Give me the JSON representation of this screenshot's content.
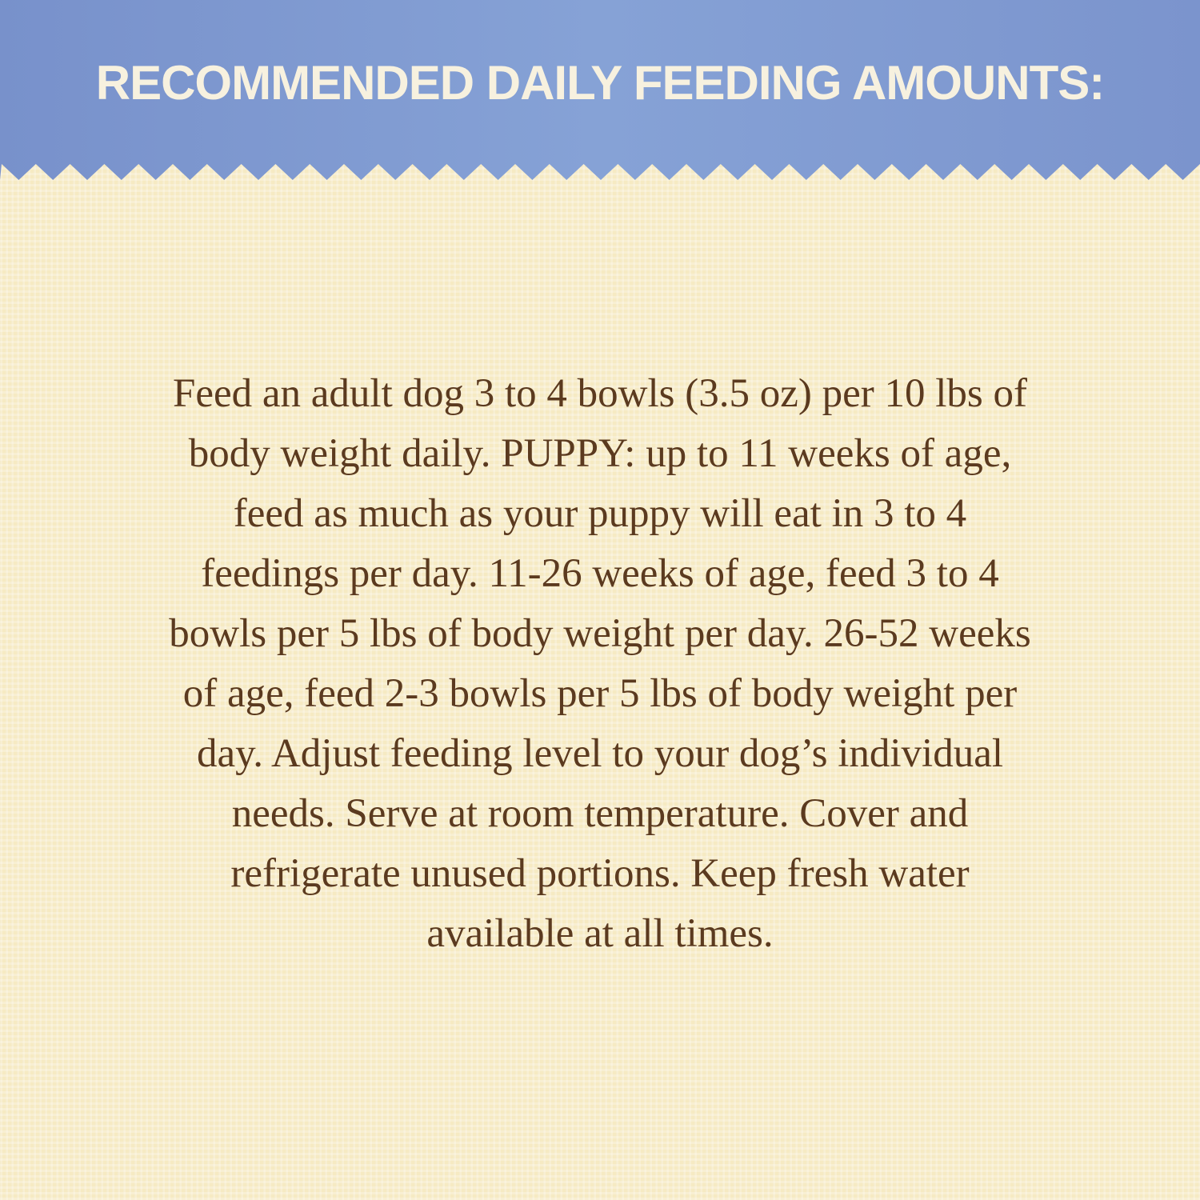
{
  "header": {
    "title": "RECOMMENDED DAILY FEEDING AMOUNTS:"
  },
  "colors": {
    "banner": "#7f9ad0",
    "background": "#f6eac3",
    "text": "#5b3a1f",
    "title_text": "#f7f1df"
  },
  "body": {
    "lines": [
      "Feed an adult dog 3 to 4 bowls (3.5 oz) per 10 lbs of",
      "body weight daily. PUPPY: up to 11 weeks of age,",
      "feed as much as your puppy will eat in 3 to 4",
      "feedings per day. 11-26 weeks of age, feed 3 to 4",
      "bowls per 5 lbs of body weight per day. 26-52 weeks",
      "of age, feed 2-3 bowls per 5 lbs of body weight per",
      "day. Adjust feeding level to your dog’s individual",
      "needs. Serve at room temperature. Cover and",
      "refrigerate unused portions. Keep fresh water",
      "available at all times."
    ]
  }
}
